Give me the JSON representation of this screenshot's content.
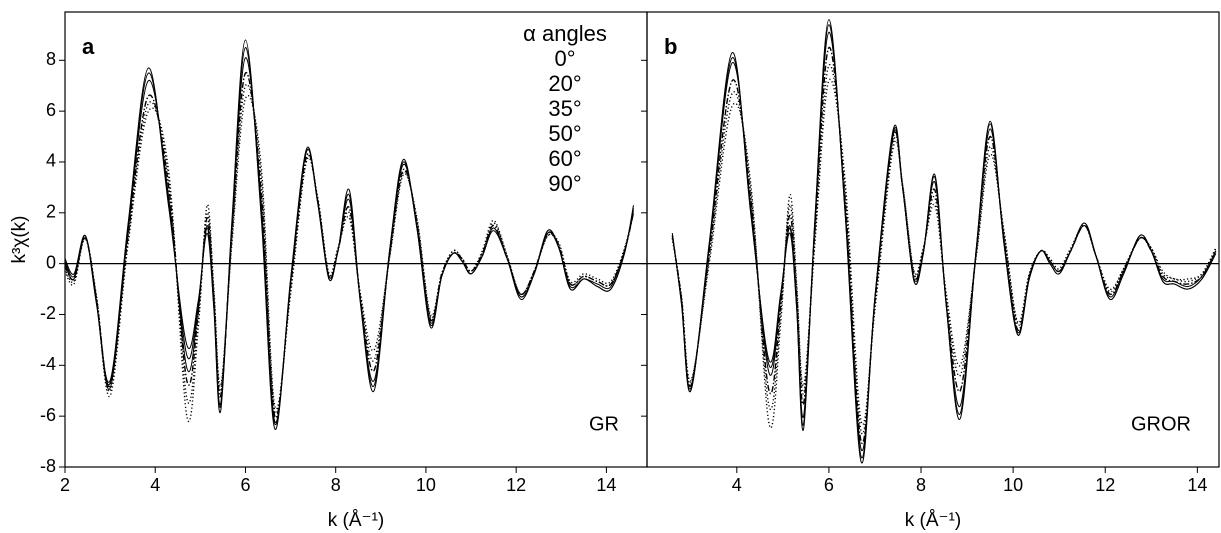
{
  "chart_data": [
    {
      "type": "line",
      "panel_label": "a",
      "annotation": "GR",
      "legend_title": "α angles",
      "x_label": "k (Å⁻¹)",
      "y_label": "k³χ(k)",
      "zero_line": true,
      "xlim": [
        2,
        14.9
      ],
      "xticks": [
        2,
        4,
        6,
        8,
        10,
        12,
        14
      ],
      "ylim": [
        -8,
        9.9
      ],
      "yticks": [
        8,
        6,
        4,
        2,
        0,
        -2,
        -4,
        -6,
        -8
      ],
      "x": [
        2.0,
        2.2,
        2.45,
        2.7,
        3.0,
        3.4,
        3.85,
        4.3,
        4.7,
        4.95,
        5.15,
        5.3,
        5.45,
        5.7,
        6.0,
        6.35,
        6.65,
        7.0,
        7.35,
        7.6,
        7.85,
        8.05,
        8.3,
        8.55,
        8.85,
        9.2,
        9.5,
        9.8,
        10.1,
        10.35,
        10.6,
        10.8,
        11.0,
        11.25,
        11.5,
        11.8,
        12.1,
        12.4,
        12.7,
        12.95,
        13.2,
        13.5,
        13.8,
        14.1,
        14.4,
        14.6
      ],
      "series": [
        {
          "name": "0°",
          "color": "#000000",
          "style": "solid",
          "values": [
            0.1,
            -0.5,
            1.1,
            -1.6,
            -4.6,
            1.6,
            7.7,
            2.2,
            -3.2,
            -1.5,
            1.2,
            -1.8,
            -5.8,
            1.7,
            8.8,
            1.8,
            -6.5,
            -0.6,
            4.5,
            2.4,
            -0.6,
            0.5,
            2.9,
            -1.6,
            -5.0,
            0.6,
            4.1,
            1.4,
            -2.5,
            -0.5,
            0.4,
            0.1,
            -0.4,
            0.3,
            1.4,
            0.2,
            -1.4,
            -0.4,
            1.3,
            0.6,
            -1.0,
            -0.6,
            -0.9,
            -1.0,
            0.4,
            2.3
          ]
        },
        {
          "name": "20°",
          "color": "#000000",
          "style": "dotted",
          "values": [
            -0.2,
            -0.7,
            1.0,
            -1.4,
            -5.2,
            0.8,
            6.0,
            3.6,
            -6.0,
            -2.6,
            2.3,
            -1.0,
            -4.8,
            0.8,
            6.5,
            3.8,
            -5.6,
            -1.2,
            4.0,
            2.6,
            -0.4,
            0.6,
            1.8,
            -1.2,
            -3.4,
            0.3,
            3.5,
            1.8,
            -2.0,
            -0.4,
            0.5,
            0.2,
            -0.3,
            0.5,
            1.7,
            0.3,
            -1.2,
            -0.3,
            1.1,
            0.8,
            -0.7,
            -0.4,
            -0.6,
            -0.7,
            0.6,
            2.0
          ]
        },
        {
          "name": "35°",
          "color": "#000000",
          "style": "solid",
          "values": [
            0.0,
            -0.6,
            1.1,
            -1.5,
            -4.9,
            1.3,
            7.2,
            2.6,
            -4.1,
            -1.8,
            1.5,
            -1.6,
            -5.5,
            1.4,
            8.1,
            2.4,
            -6.2,
            -0.8,
            4.4,
            2.5,
            -0.5,
            0.5,
            2.5,
            -1.5,
            -4.6,
            0.5,
            3.9,
            1.5,
            -2.3,
            -0.5,
            0.4,
            0.1,
            -0.4,
            0.3,
            1.3,
            0.2,
            -1.3,
            -0.4,
            1.2,
            0.6,
            -0.9,
            -0.6,
            -0.8,
            -0.9,
            0.5,
            2.1
          ]
        },
        {
          "name": "50°",
          "color": "#000000",
          "style": "dotted",
          "values": [
            -0.3,
            -0.8,
            1.0,
            -1.3,
            -5.0,
            0.9,
            6.3,
            3.3,
            -5.3,
            -2.3,
            2.0,
            -1.2,
            -5.0,
            1.0,
            7.0,
            3.4,
            -5.8,
            -1.0,
            4.1,
            2.6,
            -0.4,
            0.6,
            2.0,
            -1.3,
            -3.8,
            0.4,
            3.6,
            1.7,
            -2.1,
            -0.4,
            0.5,
            0.2,
            -0.3,
            0.4,
            1.6,
            0.3,
            -1.2,
            -0.3,
            1.1,
            0.7,
            -0.8,
            -0.5,
            -0.7,
            -0.8,
            0.5,
            2.0
          ]
        },
        {
          "name": "60°",
          "color": "#000000",
          "style": "solid",
          "values": [
            0.2,
            -0.4,
            1.1,
            -1.6,
            -4.7,
            1.5,
            7.5,
            2.4,
            -3.6,
            -1.6,
            1.4,
            -1.7,
            -5.6,
            1.5,
            8.5,
            2.0,
            -6.3,
            -0.7,
            4.4,
            2.4,
            -0.6,
            0.5,
            2.7,
            -1.5,
            -4.8,
            0.6,
            4.0,
            1.4,
            -2.4,
            -0.5,
            0.4,
            0.1,
            -0.4,
            0.3,
            1.4,
            0.2,
            -1.3,
            -0.4,
            1.3,
            0.6,
            -1.0,
            -0.6,
            -0.9,
            -1.0,
            0.4,
            2.2
          ]
        },
        {
          "name": "90°",
          "color": "#000000",
          "style": "dashdot",
          "values": [
            -0.1,
            -0.6,
            1.0,
            -1.4,
            -4.8,
            1.1,
            6.6,
            3.0,
            -4.6,
            -2.0,
            1.8,
            -1.4,
            -5.2,
            1.2,
            7.5,
            2.8,
            -6.0,
            -0.9,
            4.2,
            2.5,
            -0.5,
            0.5,
            2.2,
            -1.4,
            -4.2,
            0.4,
            3.7,
            1.6,
            -2.2,
            -0.4,
            0.4,
            0.2,
            -0.3,
            0.4,
            1.5,
            0.2,
            -1.2,
            -0.3,
            1.2,
            0.7,
            -0.8,
            -0.5,
            -0.7,
            -0.8,
            0.5,
            2.0
          ]
        }
      ]
    },
    {
      "type": "line",
      "panel_label": "b",
      "annotation": "GROR",
      "x_label": "k (Å⁻¹)",
      "zero_line": true,
      "xlim": [
        2.05,
        14.47
      ],
      "xticks": [
        4,
        6,
        8,
        10,
        12,
        14
      ],
      "ylim": [
        -8,
        9.9
      ],
      "x": [
        2.6,
        2.8,
        3.0,
        3.4,
        3.9,
        4.3,
        4.7,
        4.95,
        5.15,
        5.3,
        5.45,
        5.7,
        6.0,
        6.35,
        6.7,
        7.0,
        7.4,
        7.6,
        7.85,
        8.05,
        8.3,
        8.55,
        8.85,
        9.2,
        9.5,
        9.8,
        10.1,
        10.35,
        10.6,
        10.8,
        11.0,
        11.25,
        11.55,
        11.8,
        12.1,
        12.4,
        12.75,
        13.0,
        13.25,
        13.5,
        13.8,
        14.1,
        14.4
      ],
      "series": [
        {
          "color": "#000000",
          "style": "solid",
          "values": [
            1.2,
            -1.6,
            -5.0,
            0.8,
            8.3,
            2.0,
            -3.8,
            -1.2,
            1.2,
            -1.8,
            -6.5,
            1.9,
            9.6,
            2.0,
            -7.8,
            -1.3,
            5.3,
            3.0,
            -0.7,
            0.4,
            3.5,
            -1.7,
            -6.1,
            0.6,
            5.6,
            0.8,
            -2.8,
            -0.6,
            0.5,
            0.0,
            -0.4,
            0.5,
            1.6,
            0.3,
            -1.4,
            -0.4,
            1.1,
            0.5,
            -0.7,
            -0.8,
            -1.0,
            -0.6,
            0.4
          ]
        },
        {
          "color": "#000000",
          "style": "dotted",
          "values": [
            1.0,
            -1.3,
            -4.6,
            0.0,
            6.2,
            3.2,
            -6.3,
            -2.4,
            2.7,
            -0.8,
            -4.8,
            0.9,
            7.2,
            3.3,
            -6.2,
            -1.8,
            4.6,
            3.1,
            -0.3,
            0.6,
            2.3,
            -1.2,
            -4.0,
            0.3,
            4.3,
            1.3,
            -2.3,
            -0.4,
            0.5,
            0.2,
            -0.2,
            0.6,
            1.5,
            0.3,
            -1.0,
            -0.2,
            1.0,
            0.6,
            -0.3,
            -0.6,
            -0.6,
            -0.4,
            0.6
          ]
        },
        {
          "color": "#000000",
          "style": "solid",
          "values": [
            1.1,
            -1.5,
            -4.9,
            0.6,
            7.9,
            2.3,
            -4.3,
            -1.4,
            1.5,
            -1.6,
            -6.0,
            1.7,
            9.1,
            2.3,
            -7.3,
            -1.4,
            5.1,
            3.0,
            -0.6,
            0.5,
            3.2,
            -1.6,
            -5.6,
            0.5,
            5.3,
            0.9,
            -2.7,
            -0.5,
            0.5,
            0.1,
            -0.3,
            0.5,
            1.5,
            0.3,
            -1.3,
            -0.3,
            1.0,
            0.5,
            -0.6,
            -0.7,
            -0.9,
            -0.5,
            0.5
          ]
        },
        {
          "color": "#000000",
          "style": "dotted",
          "values": [
            1.0,
            -1.4,
            -4.7,
            0.2,
            6.7,
            2.9,
            -5.6,
            -2.0,
            2.3,
            -1.0,
            -5.1,
            1.1,
            7.8,
            3.0,
            -6.6,
            -1.6,
            4.8,
            3.1,
            -0.4,
            0.6,
            2.6,
            -1.3,
            -4.4,
            0.4,
            4.6,
            1.2,
            -2.4,
            -0.4,
            0.5,
            0.2,
            -0.2,
            0.6,
            1.5,
            0.3,
            -1.1,
            -0.2,
            1.0,
            0.6,
            -0.4,
            -0.6,
            -0.7,
            -0.4,
            0.6
          ]
        },
        {
          "color": "#000000",
          "style": "solid",
          "values": [
            1.2,
            -1.6,
            -5.0,
            0.7,
            8.1,
            2.1,
            -4.0,
            -1.3,
            1.4,
            -1.7,
            -6.3,
            1.8,
            9.4,
            2.1,
            -7.6,
            -1.3,
            5.2,
            3.0,
            -0.7,
            0.4,
            3.4,
            -1.7,
            -5.9,
            0.6,
            5.5,
            0.8,
            -2.8,
            -0.6,
            0.5,
            0.0,
            -0.4,
            0.5,
            1.6,
            0.3,
            -1.4,
            -0.4,
            1.1,
            0.5,
            -0.7,
            -0.8,
            -1.0,
            -0.6,
            0.4
          ]
        },
        {
          "color": "#000000",
          "style": "dashdot",
          "values": [
            1.1,
            -1.4,
            -4.8,
            0.4,
            7.2,
            2.6,
            -5.0,
            -1.7,
            1.9,
            -1.3,
            -5.5,
            1.4,
            8.5,
            2.6,
            -7.0,
            -1.5,
            5.0,
            3.0,
            -0.5,
            0.5,
            2.9,
            -1.5,
            -5.0,
            0.5,
            5.0,
            1.0,
            -2.6,
            -0.5,
            0.5,
            0.1,
            -0.3,
            0.5,
            1.5,
            0.3,
            -1.2,
            -0.3,
            1.0,
            0.5,
            -0.5,
            -0.7,
            -0.8,
            -0.5,
            0.5
          ]
        }
      ]
    }
  ]
}
